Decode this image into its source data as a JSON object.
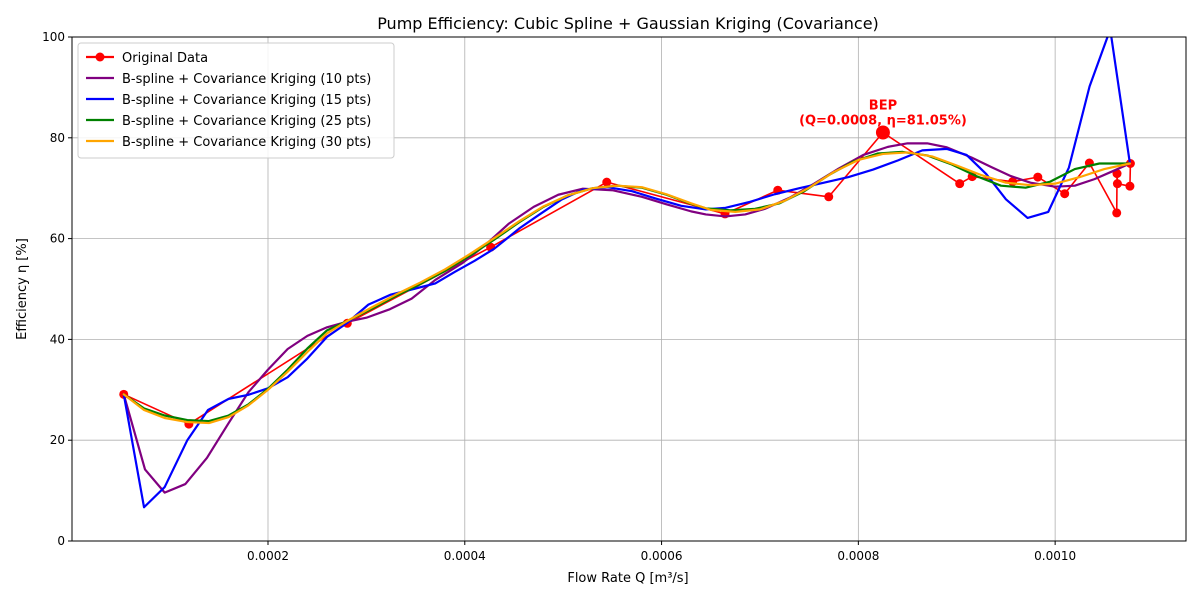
{
  "chart_data": {
    "type": "line",
    "title": "Pump Efficiency: Cubic Spline + Gaussian Kriging (Covariance)",
    "xlabel": "Flow Rate Q [m³/s]",
    "ylabel": "Efficiency η [%]",
    "xlim": [
      8e-07,
      0.001133
    ],
    "ylim": [
      0,
      100
    ],
    "xticks": [
      0.0002,
      0.0004,
      0.0006,
      0.0008,
      0.001
    ],
    "xtick_labels": [
      "0.0002",
      "0.0004",
      "0.0006",
      "0.0008",
      "0.0010"
    ],
    "yticks": [
      0,
      20,
      40,
      60,
      80,
      100
    ],
    "ytick_labels": [
      "0",
      "20",
      "40",
      "60",
      "80",
      "100"
    ],
    "grid": true,
    "legend_position": "top-left",
    "series": [
      {
        "name": "Original Data",
        "color": "#ff0000",
        "marker": "circle",
        "x": [
          5.34e-05,
          0.0001196,
          0.0002806,
          0.0004263,
          0.0005443,
          0.0006645,
          0.0007181,
          0.0007699,
          0.000825,
          0.000903,
          0.0009157,
          0.0009568,
          0.0009824,
          0.0010097,
          0.0010348,
          0.0010626,
          0.0010629,
          0.0010633,
          0.001076,
          0.0010765
        ],
        "y": [
          29.1,
          23.2,
          43.2,
          58.3,
          71.2,
          64.9,
          69.6,
          68.3,
          81.05,
          70.9,
          72.3,
          71.3,
          72.2,
          68.9,
          75.0,
          65.1,
          72.9,
          70.9,
          70.4,
          74.9
        ]
      },
      {
        "name": "B-spline + Covariance Kriging (10 pts)",
        "color": "#800080",
        "marker": "none",
        "x": [
          5.34e-05,
          7.5e-05,
          9.5e-05,
          0.000116,
          0.000138,
          0.00016,
          0.00018,
          0.0002,
          0.00022,
          0.00024,
          0.00026,
          0.00028,
          0.0003,
          0.000324,
          0.000346,
          0.00037,
          0.000398,
          0.00042,
          0.000445,
          0.00047,
          0.000495,
          0.00052,
          0.00055,
          0.00058,
          0.000605,
          0.00063,
          0.000645,
          0.000665,
          0.000685,
          0.000705,
          0.00073,
          0.000755,
          0.00078,
          0.000805,
          0.00083,
          0.00085,
          0.00087,
          0.00089,
          0.000915,
          0.000935,
          0.000955,
          0.000975,
          0.001,
          0.00102,
          0.00104,
          0.00106,
          0.001076
        ],
        "y": [
          29.1,
          14.2,
          9.6,
          11.3,
          16.5,
          23.4,
          29.5,
          34.0,
          38.1,
          40.7,
          42.4,
          43.5,
          44.3,
          46.0,
          48.1,
          51.8,
          55.2,
          58.6,
          63.0,
          66.3,
          68.7,
          69.9,
          69.6,
          68.3,
          66.8,
          65.4,
          64.8,
          64.4,
          64.8,
          65.9,
          68.1,
          70.9,
          73.9,
          76.6,
          78.2,
          78.9,
          78.9,
          78.1,
          76.1,
          74.2,
          72.4,
          71.1,
          70.3,
          70.5,
          71.8,
          73.5,
          74.9
        ]
      },
      {
        "name": "B-spline + Covariance Kriging (15 pts)",
        "color": "#0000ff",
        "marker": "none",
        "x": [
          5.34e-05,
          7.4e-05,
          9.5e-05,
          0.000118,
          0.000139,
          0.00016,
          0.00018,
          0.0002,
          0.00022,
          0.00024,
          0.00026,
          0.00028,
          0.000302,
          0.000325,
          0.000348,
          0.00037,
          0.00039,
          0.00041,
          0.00043,
          0.000456,
          0.000476,
          0.000498,
          0.00052,
          0.000545,
          0.00057,
          0.000595,
          0.00062,
          0.000645,
          0.000665,
          0.00069,
          0.000715,
          0.00074,
          0.000765,
          0.00079,
          0.000815,
          0.00084,
          0.000865,
          0.00089,
          0.00091,
          0.00093,
          0.00095,
          0.000972,
          0.000993,
          0.001014,
          0.001035,
          0.001056,
          0.001076
        ],
        "y": [
          29.1,
          6.7,
          10.7,
          20.0,
          26.0,
          28.2,
          29.0,
          30.3,
          32.5,
          36.2,
          40.5,
          43.2,
          46.9,
          48.9,
          50.0,
          51.1,
          53.4,
          55.6,
          58.0,
          62.1,
          64.8,
          67.7,
          69.7,
          70.2,
          69.4,
          67.9,
          66.5,
          65.8,
          66.1,
          67.3,
          68.8,
          70.0,
          71.1,
          72.2,
          73.7,
          75.5,
          77.5,
          77.8,
          76.6,
          72.8,
          67.8,
          64.1,
          65.3,
          74.1,
          90.2,
          101.5,
          74.9
        ]
      },
      {
        "name": "B-spline + Covariance Kriging (25 pts)",
        "color": "#008000",
        "marker": "none",
        "x": [
          5.34e-05,
          7.4e-05,
          9.5e-05,
          0.000118,
          0.00014,
          0.00016,
          0.00018,
          0.0002,
          0.00022,
          0.00024,
          0.00026,
          0.00028,
          0.000305,
          0.00033,
          0.000355,
          0.00038,
          0.000405,
          0.00043,
          0.000455,
          0.00048,
          0.000505,
          0.00053,
          0.000555,
          0.00058,
          0.000605,
          0.00063,
          0.000645,
          0.00067,
          0.000695,
          0.00072,
          0.000745,
          0.00077,
          0.000795,
          0.00082,
          0.000845,
          0.00087,
          0.000895,
          0.00092,
          0.000945,
          0.00097,
          0.000995,
          0.00102,
          0.001045,
          0.001076
        ],
        "y": [
          29.1,
          26.3,
          24.9,
          24.0,
          23.8,
          24.9,
          27.1,
          30.2,
          34.0,
          38.2,
          41.8,
          43.6,
          46.0,
          48.6,
          51.0,
          53.6,
          56.6,
          59.8,
          63.2,
          66.3,
          68.6,
          70.0,
          70.5,
          70.1,
          68.7,
          66.9,
          66.0,
          65.6,
          65.9,
          67.0,
          69.4,
          72.6,
          75.3,
          76.9,
          77.2,
          76.5,
          74.7,
          72.4,
          70.5,
          70.1,
          71.3,
          73.8,
          74.9,
          74.9
        ]
      },
      {
        "name": "B-spline + Covariance Kriging (30 pts)",
        "color": "#ffa500",
        "marker": "none",
        "x": [
          5.34e-05,
          7.4e-05,
          9.5e-05,
          0.000118,
          0.00014,
          0.00016,
          0.00018,
          0.0002,
          0.00022,
          0.00024,
          0.00026,
          0.00028,
          0.000305,
          0.00033,
          0.000355,
          0.00038,
          0.000405,
          0.00043,
          0.000455,
          0.00048,
          0.000505,
          0.00053,
          0.000555,
          0.00058,
          0.000605,
          0.00063,
          0.00065,
          0.000675,
          0.0007,
          0.000725,
          0.00075,
          0.000775,
          0.0008,
          0.000825,
          0.00085,
          0.000875,
          0.0009,
          0.000925,
          0.00095,
          0.000975,
          0.001,
          0.001025,
          0.00105,
          0.001076
        ],
        "y": [
          29.1,
          26.0,
          24.4,
          23.6,
          23.4,
          24.6,
          26.9,
          30.0,
          33.6,
          37.5,
          41.2,
          43.6,
          46.3,
          48.9,
          51.3,
          53.9,
          56.9,
          60.1,
          63.4,
          66.4,
          68.6,
          70.0,
          70.5,
          70.2,
          68.8,
          67.0,
          65.7,
          65.3,
          65.8,
          67.5,
          70.1,
          73.2,
          75.6,
          76.8,
          77.1,
          76.3,
          74.5,
          72.6,
          71.1,
          70.6,
          70.9,
          72.2,
          73.8,
          74.9
        ]
      }
    ],
    "annotation": {
      "text_line1": "BEP",
      "text_line2": "(Q=0.0008, η=81.05%)",
      "x": 0.000825,
      "y": 81.05,
      "color": "#ff0000"
    }
  }
}
